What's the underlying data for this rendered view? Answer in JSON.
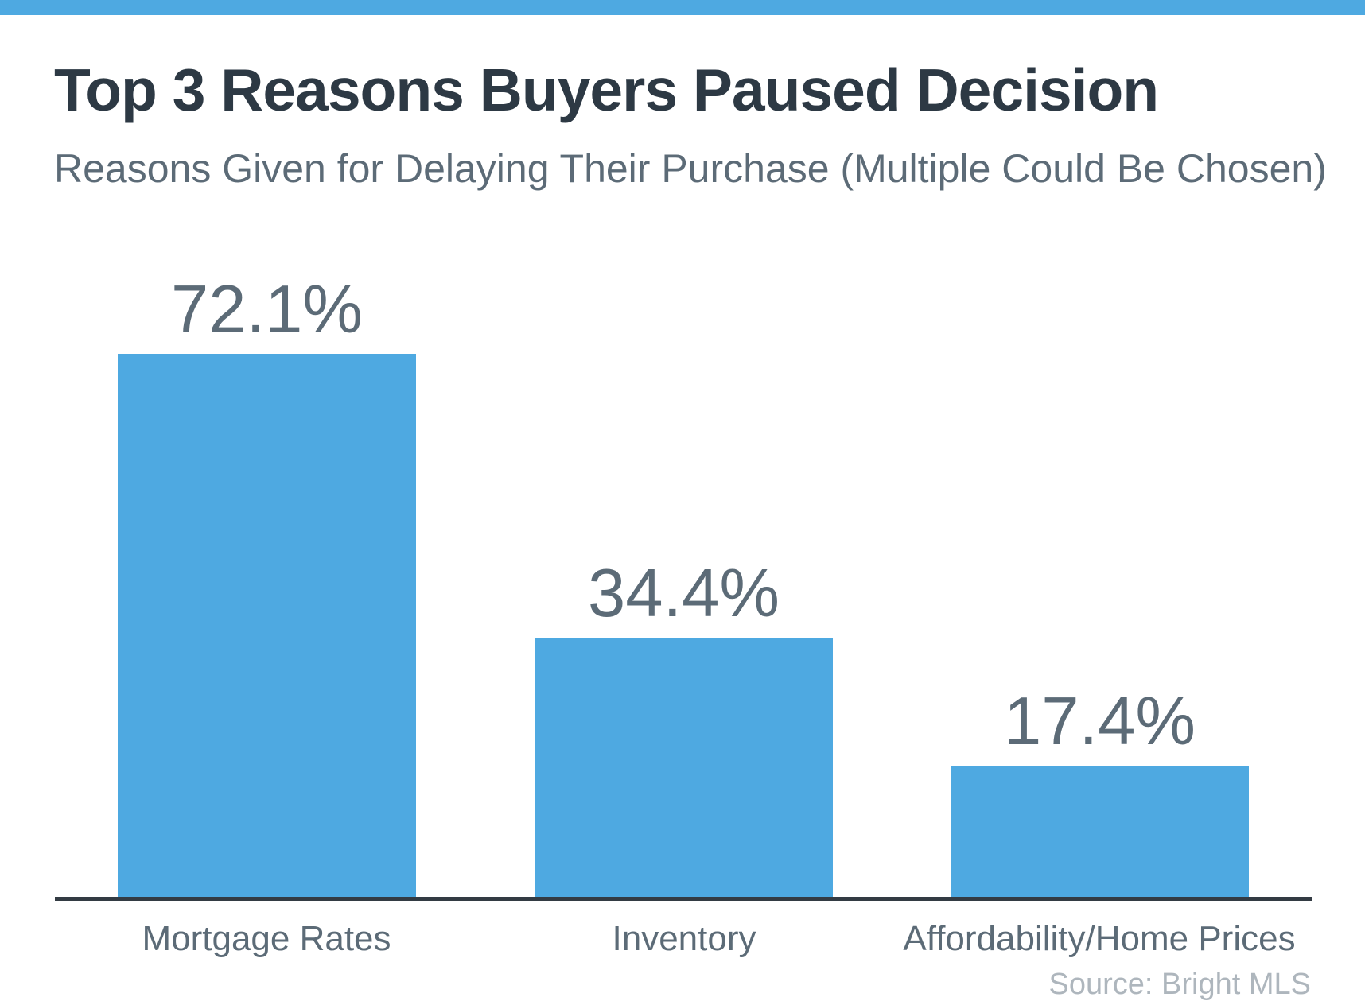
{
  "page": {
    "background": "#ffffff",
    "accent_stripe_color": "#4ea9e1"
  },
  "chart_data": {
    "type": "bar",
    "title": "Top 3 Reasons Buyers Paused Decision",
    "subtitle": "Reasons Given for Delaying Their Purchase (Multiple Could Be Chosen)",
    "categories": [
      "Mortgage Rates",
      "Inventory",
      "Affordability/Home Prices"
    ],
    "values": [
      72.1,
      34.4,
      17.4
    ],
    "value_labels": [
      "72.1%",
      "34.4%",
      "17.4%"
    ],
    "source": "Source: Bright MLS",
    "bar_color": "#4ea9e1",
    "value_label_color": "#5c6b77",
    "category_label_color": "#5c6b77",
    "axis_line_color": "#333b43",
    "ylabel": "",
    "xlabel": "",
    "ylim": [
      0,
      80
    ],
    "grid": false,
    "legend": false,
    "y_axis_ticks_visible": false
  }
}
